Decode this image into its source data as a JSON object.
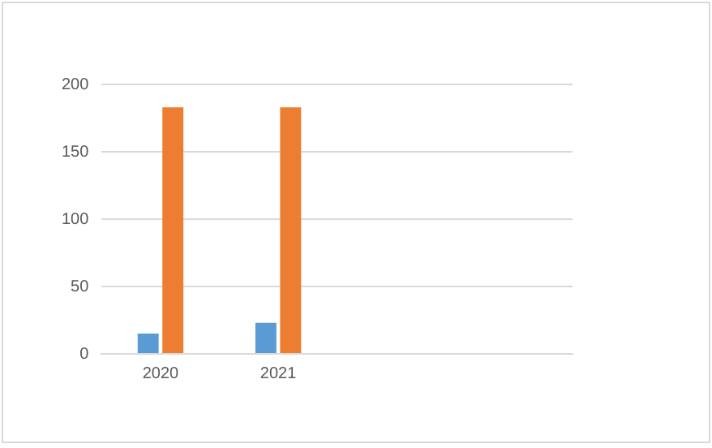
{
  "chart_data": {
    "type": "bar",
    "categories": [
      "2020",
      "2021",
      null,
      null
    ],
    "series": [
      {
        "color": "#5b9bd5",
        "values": [
          15,
          23,
          null,
          null
        ]
      },
      {
        "color": "#ed7d31",
        "values": [
          183,
          183,
          null,
          null
        ]
      }
    ],
    "ylim": [
      0,
      200
    ],
    "yticks": [
      0,
      50,
      100,
      150,
      200
    ],
    "grid": "y",
    "legend": false
  }
}
